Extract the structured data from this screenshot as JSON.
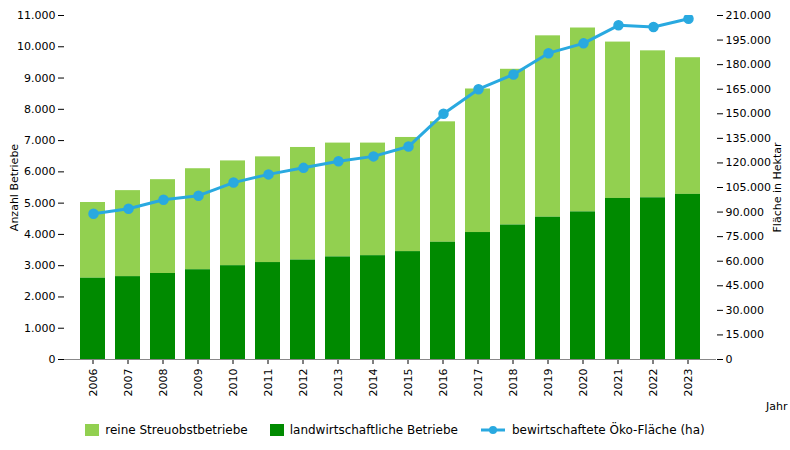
{
  "chart_data": {
    "type": "bar",
    "stacked": true,
    "grid": false,
    "legend": "bottom",
    "x_label": "Jahr",
    "y_label": "Anzahl Betriebe",
    "y2_label": "Fläche in Hektar",
    "categories": [
      "2006",
      "2007",
      "2008",
      "2009",
      "2010",
      "2011",
      "2012",
      "2013",
      "2014",
      "2015",
      "2016",
      "2017",
      "2018",
      "2019",
      "2020",
      "2021",
      "2022",
      "2023"
    ],
    "series": [
      {
        "name": "reine Streuobstbetriebe",
        "type": "bar",
        "color": "#92d050",
        "values": [
          2420,
          2750,
          3000,
          3230,
          3350,
          3380,
          3600,
          3640,
          3600,
          3650,
          3850,
          4590,
          4980,
          5800,
          5880,
          5000,
          4700,
          4370
        ]
      },
      {
        "name": "landwirtschaftliche Betriebe",
        "type": "bar",
        "color": "#008a00",
        "values": [
          2600,
          2650,
          2750,
          2870,
          3000,
          3100,
          3180,
          3280,
          3320,
          3450,
          3750,
          4060,
          4300,
          4550,
          4720,
          5150,
          5170,
          5280
        ]
      },
      {
        "name": "bewirtschaftete Öko-Fläche (ha)",
        "type": "line",
        "axis": "y2",
        "marker": "circle",
        "color": "#29a9e0",
        "values": [
          89000,
          92000,
          97500,
          100000,
          108000,
          113000,
          117000,
          121000,
          124000,
          130000,
          150000,
          165000,
          174000,
          187000,
          193000,
          204000,
          203000,
          208000
        ]
      }
    ],
    "ylim": [
      0,
      11000
    ],
    "yticks": [
      0,
      {
        "value": 1000,
        "label": "1.000"
      },
      {
        "value": 2000,
        "label": "2.000"
      },
      {
        "value": 3000,
        "label": "3.000"
      },
      {
        "value": 4000,
        "label": "4.000"
      },
      {
        "value": 5000,
        "label": "5.000"
      },
      {
        "value": 6000,
        "label": "6.000"
      },
      {
        "value": 7000,
        "label": "7.000"
      },
      {
        "value": 8000,
        "label": "8.000"
      },
      {
        "value": 9000,
        "label": "9.000"
      },
      {
        "value": 10000,
        "label": "10.000"
      },
      {
        "value": 11000,
        "label": "11.000"
      }
    ],
    "y2lim": [
      0,
      210000
    ],
    "y2ticks": [
      0,
      {
        "value": 15000,
        "label": "15.000"
      },
      {
        "value": 30000,
        "label": "30.000"
      },
      {
        "value": 45000,
        "label": "45.000"
      },
      {
        "value": 60000,
        "label": "60.000"
      },
      {
        "value": 75000,
        "label": "75.000"
      },
      {
        "value": 90000,
        "label": "90.000"
      },
      {
        "value": 105000,
        "label": "105.000"
      },
      {
        "value": 120000,
        "label": "120.000"
      },
      {
        "value": 135000,
        "label": "135.000"
      },
      {
        "value": 150000,
        "label": "150.000"
      },
      {
        "value": 165000,
        "label": "165.000"
      },
      {
        "value": 180000,
        "label": "180.000"
      },
      {
        "value": 195000,
        "label": "195.000"
      },
      {
        "value": 210000,
        "label": "210.000"
      }
    ]
  }
}
